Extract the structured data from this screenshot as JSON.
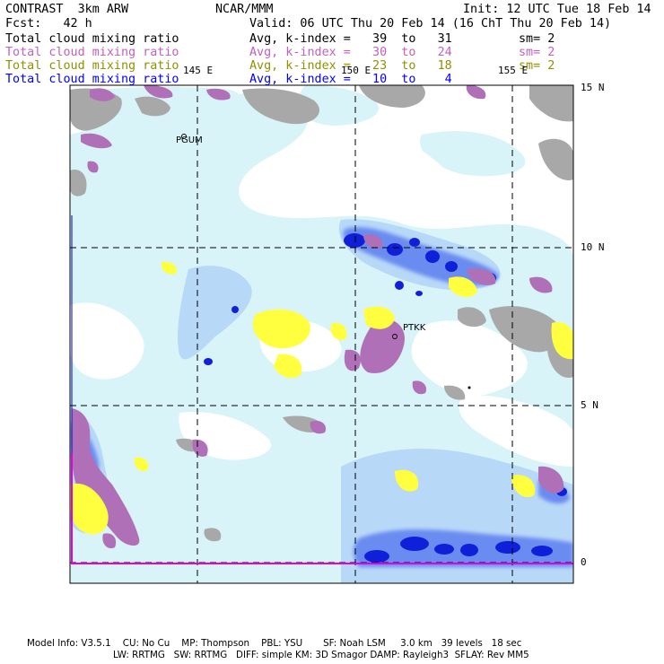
{
  "header": {
    "title": "CONTRAST  3km ARW",
    "center": "NCAR/MMM",
    "init": "Init: 12 UTC Tue 18 Feb 14",
    "fcst": "Fcst:   42 h",
    "valid": "Valid: 06 UTC Thu 20 Feb 14 (16 ChT Thu 20 Feb 14)"
  },
  "fields": [
    {
      "name": "Total cloud mixing ratio",
      "range": "Avg, k-index =   39  to   31",
      "sm": "sm= 2",
      "color": "#000000"
    },
    {
      "name": "Total cloud mixing ratio",
      "range": "Avg, k-index =   30  to   24",
      "sm": "sm= 2",
      "color": "#c060c0"
    },
    {
      "name": "Total cloud mixing ratio",
      "range": "Avg, k-index =   23  to   18",
      "sm": "sm= 2",
      "color": "#909000"
    },
    {
      "name": "Total cloud mixing ratio",
      "range": "Avg, k-index =   10  to    4",
      "sm": "",
      "color": "#0000ff"
    }
  ],
  "map": {
    "lon_labels": [
      "145 E",
      "150 E",
      "155 E"
    ],
    "lat_labels": [
      "15 N",
      "10 N",
      "5 N",
      "0"
    ],
    "stations": [
      "PGUM",
      "PTKK"
    ],
    "colors": {
      "ocean": "#ffffff",
      "light_cyan": "#d8f4f8",
      "pale_blue": "#b8d8f8",
      "mid_blue": "#6a8cf0",
      "dark_blue": "#1020d8",
      "gray": "#a8a8a8",
      "purple": "#b070b8",
      "yellow": "#ffff40",
      "boundary": "#e000e0"
    }
  },
  "footer": {
    "line1": "Model Info: V3.5.1    CU: No Cu    MP: Thompson    PBL: YSU       SF: Noah LSM     3.0 km   39 levels   18 sec",
    "line2": "LW: RRTMG   SW: RRTMG   DIFF: simple KM: 3D Smagor DAMP: Rayleigh3  SFLAY: Rev MM5"
  }
}
